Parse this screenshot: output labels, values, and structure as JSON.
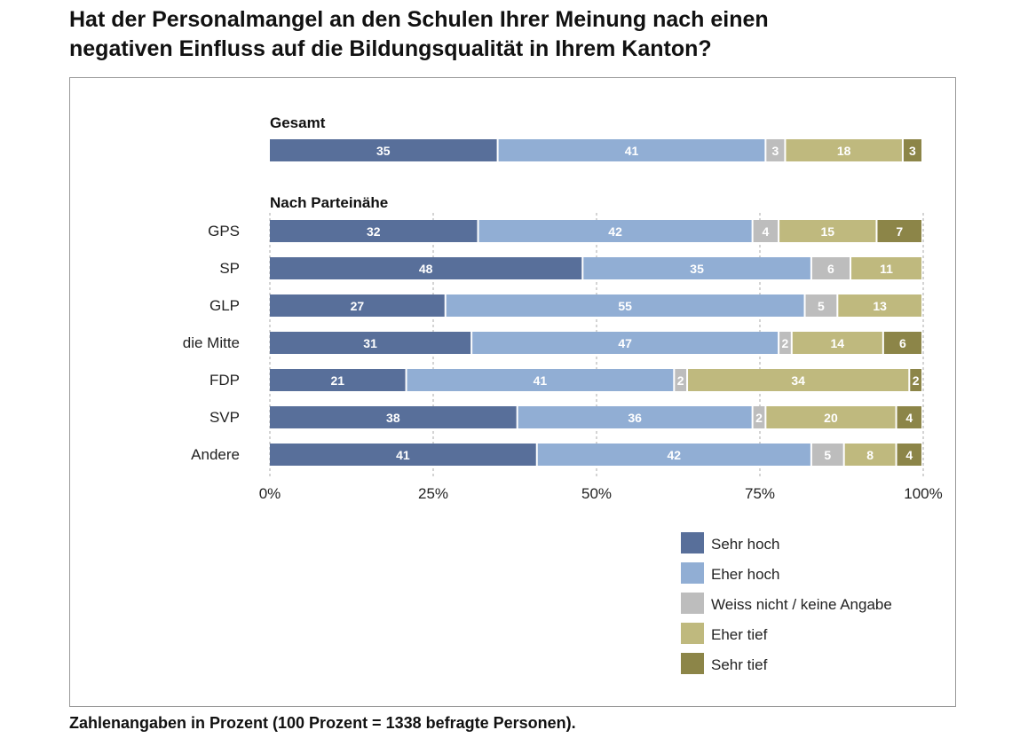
{
  "title_lines": [
    "Hat der Personalmangel an den Schulen Ihrer Meinung nach einen",
    "negativen Einfluss auf die Bildungsqualität in Ihrem Kanton?"
  ],
  "note": "Zahlenangaben in Prozent (100 Prozent = 1338 befragte Personen).",
  "chart_data": {
    "type": "bar",
    "orientation": "horizontal",
    "stacked": true,
    "xlim": [
      0,
      100
    ],
    "x_ticks": [
      "0%",
      "25%",
      "50%",
      "75%",
      "100%"
    ],
    "grid": true,
    "legend_placement": "bottom-right",
    "series": [
      {
        "name": "Sehr hoch",
        "color": "#586f9a"
      },
      {
        "name": "Eher hoch",
        "color": "#91aed4"
      },
      {
        "name": "Weiss nicht / keine Angabe",
        "color": "#bdbdbd"
      },
      {
        "name": "Eher tief",
        "color": "#bfb97e"
      },
      {
        "name": "Sehr tief",
        "color": "#8c8548"
      }
    ],
    "groups": [
      {
        "heading": "Gesamt",
        "rows": [
          {
            "label": "",
            "values": [
              35,
              41,
              3,
              18,
              3
            ]
          }
        ]
      },
      {
        "heading": "Nach Parteinähe",
        "rows": [
          {
            "label": "GPS",
            "values": [
              32,
              42,
              4,
              15,
              7
            ]
          },
          {
            "label": "SP",
            "values": [
              48,
              35,
              6,
              11,
              0
            ]
          },
          {
            "label": "GLP",
            "values": [
              27,
              55,
              5,
              13,
              0
            ]
          },
          {
            "label": "die Mitte",
            "values": [
              31,
              47,
              2,
              14,
              6
            ]
          },
          {
            "label": "FDP",
            "values": [
              21,
              41,
              2,
              34,
              2
            ]
          },
          {
            "label": "SVP",
            "values": [
              38,
              36,
              2,
              20,
              4
            ]
          },
          {
            "label": "Andere",
            "values": [
              41,
              42,
              5,
              8,
              4
            ]
          }
        ]
      }
    ]
  }
}
